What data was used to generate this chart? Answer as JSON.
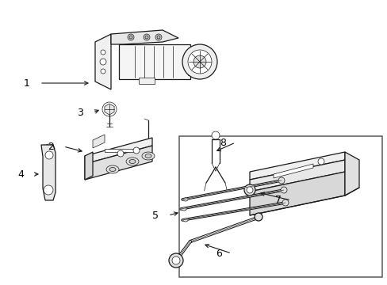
{
  "bg_color": "#ffffff",
  "line_color": "#1a1a1a",
  "box_color": "#666666",
  "fig_width": 4.89,
  "fig_height": 3.6,
  "dpi": 100
}
